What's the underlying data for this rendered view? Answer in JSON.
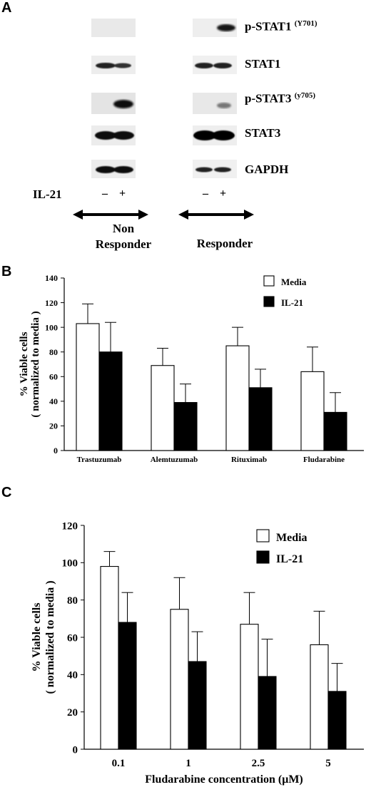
{
  "panel_a": {
    "letter": "A",
    "blot_labels": [
      {
        "main": "p-STAT1",
        "sup": "(Y701)"
      },
      {
        "main": "STAT1",
        "sup": ""
      },
      {
        "main": "p-STAT3",
        "sup": "(y705)"
      },
      {
        "main": "STAT3",
        "sup": ""
      },
      {
        "main": "GAPDH",
        "sup": ""
      }
    ],
    "treatment_label": "IL-21",
    "lane_signs": [
      "–",
      "+",
      "–",
      "+"
    ],
    "non_responder_label_line1": "Non",
    "non_responder_label_line2": "Responder",
    "responder_label": "Responder"
  },
  "panel_b": {
    "letter": "B"
  },
  "panel_c": {
    "letter": "C"
  },
  "chart_data": [
    {
      "type": "bar",
      "title": "",
      "categories": [
        "Trastuzumab",
        "Alemtuzumab",
        "Rituximab",
        "Fludarabine"
      ],
      "series": [
        {
          "name": "Media",
          "values": [
            103,
            69,
            85,
            64
          ],
          "errors": [
            16,
            14,
            15,
            20
          ],
          "color": "#ffffff"
        },
        {
          "name": "IL-21",
          "values": [
            80,
            39,
            51,
            31
          ],
          "errors": [
            24,
            15,
            15,
            16
          ],
          "color": "#000000"
        }
      ],
      "xlabel": "",
      "ylabel_line1": "% Viable cells",
      "ylabel_line2": "( normalized to media )",
      "ylim": [
        0,
        140
      ],
      "yticks": [
        0,
        20,
        40,
        60,
        80,
        100,
        120,
        140
      ],
      "legend_position": "top-right",
      "grid": false
    },
    {
      "type": "bar",
      "title": "",
      "categories": [
        "0.1",
        "1",
        "2.5",
        "5"
      ],
      "series": [
        {
          "name": "Media",
          "values": [
            98,
            75,
            67,
            56
          ],
          "errors": [
            8,
            17,
            17,
            18
          ],
          "color": "#ffffff"
        },
        {
          "name": "IL-21",
          "values": [
            68,
            47,
            39,
            31
          ],
          "errors": [
            16,
            16,
            20,
            15
          ],
          "color": "#000000"
        }
      ],
      "xlabel": "Fludarabine concentration (μM)",
      "ylabel_line1": "% Viable cells",
      "ylabel_line2": "( normalized to media )",
      "ylim": [
        0,
        120
      ],
      "yticks": [
        0,
        20,
        40,
        60,
        80,
        100,
        120
      ],
      "legend_position": "top-right",
      "grid": false
    }
  ]
}
